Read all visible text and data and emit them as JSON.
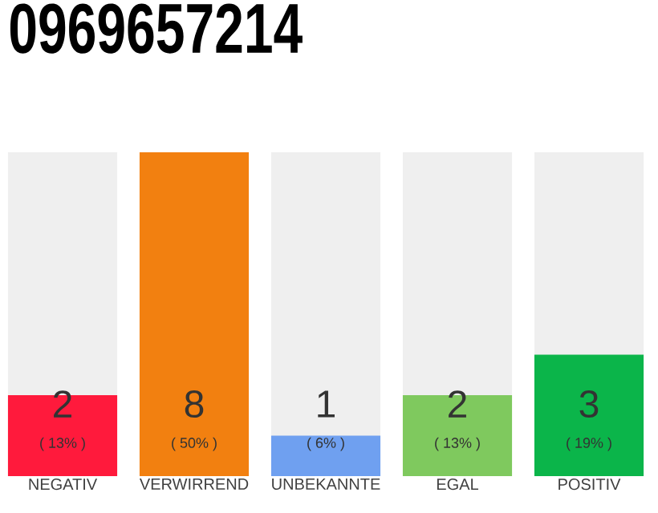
{
  "chart_data": {
    "type": "bar",
    "title": "0969657214",
    "categories": [
      "NEGATIV",
      "VERWIRREND",
      "UNBEKANNTE",
      "EGAL",
      "POSITIV"
    ],
    "values": [
      2,
      8,
      1,
      2,
      3
    ],
    "colors": [
      "#ff1a3c",
      "#f28010",
      "#6fa0f0",
      "#7fc95e",
      "#0bb54a"
    ],
    "ylim": [
      0,
      8
    ],
    "data_labels": true,
    "annotations": [
      "( 13% )",
      "( 50% )",
      "( 6% )",
      "( 13% )",
      "( 19% )"
    ]
  }
}
